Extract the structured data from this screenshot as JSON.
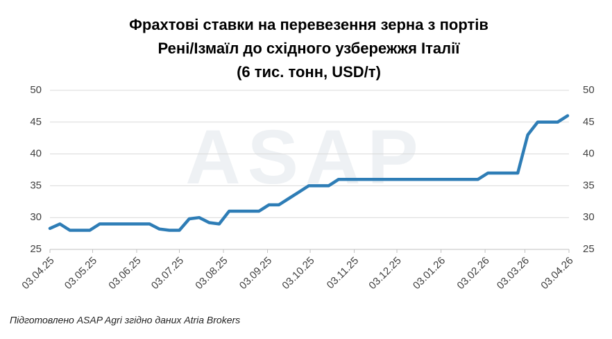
{
  "chart_data": {
    "type": "line",
    "title": [
      "Фрахтові ставки на перевезення зерна з портів",
      "Рені/Ізмаїл до східного узбережжя Італії",
      "(6 тис. тонн, USD/т)"
    ],
    "watermark": "ASAP",
    "note": "Підготовлено ASAP Agri згідно даних Atria Brokers",
    "x": [
      "03.04.25",
      "10.04.25",
      "17.04.25",
      "24.04.25",
      "01.05.25",
      "08.05.25",
      "15.05.25",
      "22.05.25",
      "29.05.25",
      "05.06.25",
      "12.06.25",
      "19.06.25",
      "26.06.25",
      "03.07.25",
      "10.07.25",
      "17.07.25",
      "24.07.25",
      "31.07.25",
      "07.08.25",
      "14.08.25",
      "21.08.25",
      "28.08.25",
      "04.09.25",
      "11.09.25",
      "18.09.25",
      "25.09.25",
      "02.10.25",
      "09.10.25",
      "16.10.25",
      "23.10.25",
      "30.10.25",
      "06.11.25",
      "13.11.25",
      "20.11.25",
      "27.11.25",
      "04.12.25",
      "11.12.25",
      "18.12.25",
      "25.12.25",
      "01.01.26",
      "08.01.26",
      "15.01.26",
      "22.01.26",
      "29.01.26",
      "05.02.26",
      "12.02.26",
      "19.02.26",
      "26.02.26",
      "05.03.26",
      "12.03.26",
      "19.03.26",
      "26.03.26",
      "02.04.26"
    ],
    "series": [
      {
        "color": "#2e7db6",
        "values": [
          28.3,
          29,
          28,
          28,
          28,
          29,
          29,
          29,
          29,
          29,
          29,
          28.2,
          28,
          28,
          29.8,
          30,
          29.2,
          29,
          31,
          31,
          31,
          31,
          32,
          32,
          33,
          34,
          35,
          35,
          35,
          36,
          36,
          36,
          36,
          36,
          36,
          36,
          36,
          36,
          36,
          36,
          36,
          36,
          36,
          36,
          37,
          37,
          37,
          37,
          43,
          45,
          45,
          45,
          46
        ]
      }
    ],
    "xlim": [
      "03.04.25",
      "03.04.26"
    ],
    "xticks": [
      "03.04.25",
      "03.05.25",
      "03.06.25",
      "03.07.25",
      "03.08.25",
      "03.09.25",
      "03.10.25",
      "03.11.25",
      "03.12.25",
      "03.01.26",
      "03.02.26",
      "03.03.26",
      "03.04.26"
    ],
    "ylim": [
      25,
      50
    ],
    "yticks": [
      25,
      30,
      35,
      40,
      45,
      50
    ],
    "y2lim": [
      25,
      50
    ],
    "y2ticks": [
      25,
      30,
      35,
      40,
      45,
      50
    ],
    "grid": true
  }
}
